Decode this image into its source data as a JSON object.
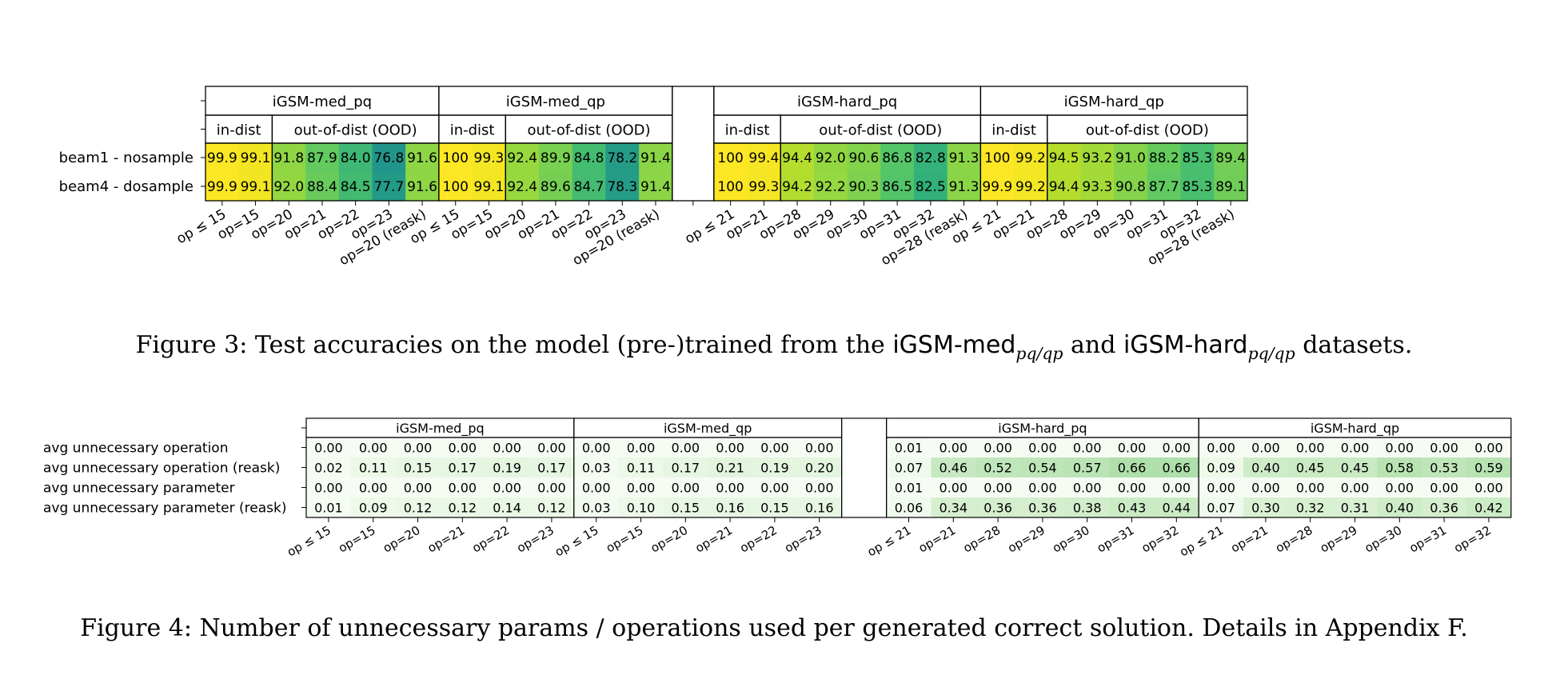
{
  "figure3": {
    "caption": {
      "prefix": "Figure 3: Test accuracies on the model (pre-)trained from the ",
      "name1": "iGSM-med",
      "sub1": "pq/qp",
      "middle": " and ",
      "name2": "iGSM-hard",
      "sub2": "pq/qp",
      "suffix": " datasets."
    },
    "chart_data": {
      "type": "heatmap",
      "rows": [
        "beam1 - nosample",
        "beam4 - dosample"
      ],
      "colormap": "viridis",
      "groups": [
        {
          "name": "iGSM-med_pq",
          "subgroups": [
            {
              "name": "in-dist",
              "count": 2
            },
            {
              "name": "out-of-dist (OOD)",
              "count": 5
            }
          ],
          "columns": [
            "op ≤ 15",
            "op=15",
            "op=20",
            "op=21",
            "op=22",
            "op=23",
            "op=20 (reask)"
          ],
          "values": [
            [
              "99.9",
              "99.1",
              "91.8",
              "87.9",
              "84.0",
              "76.8",
              "91.6"
            ],
            [
              "99.9",
              "99.1",
              "92.0",
              "88.4",
              "84.5",
              "77.7",
              "91.6"
            ]
          ]
        },
        {
          "name": "iGSM-med_qp",
          "subgroups": [
            {
              "name": "in-dist",
              "count": 2
            },
            {
              "name": "out-of-dist (OOD)",
              "count": 5
            }
          ],
          "columns": [
            "op ≤ 15",
            "op=15",
            "op=20",
            "op=21",
            "op=22",
            "op=23",
            "op=20 (reask)"
          ],
          "values": [
            [
              "100",
              "99.3",
              "92.4",
              "89.9",
              "84.8",
              "78.2",
              "91.4"
            ],
            [
              "100",
              "99.1",
              "92.4",
              "89.6",
              "84.7",
              "78.3",
              "91.4"
            ]
          ]
        },
        {
          "name": "iGSM-hard_pq",
          "subgroups": [
            {
              "name": "in-dist",
              "count": 2
            },
            {
              "name": "out-of-dist (OOD)",
              "count": 6
            }
          ],
          "columns": [
            "op ≤ 21",
            "op=21",
            "op=28",
            "op=29",
            "op=30",
            "op=31",
            "op=32",
            "op=28 (reask)"
          ],
          "values": [
            [
              "100",
              "99.4",
              "94.4",
              "92.0",
              "90.6",
              "86.8",
              "82.8",
              "91.3"
            ],
            [
              "100",
              "99.3",
              "94.2",
              "92.2",
              "90.3",
              "86.5",
              "82.5",
              "91.3"
            ]
          ]
        },
        {
          "name": "iGSM-hard_qp",
          "subgroups": [
            {
              "name": "in-dist",
              "count": 2
            },
            {
              "name": "out-of-dist (OOD)",
              "count": 6
            }
          ],
          "columns": [
            "op ≤ 21",
            "op=21",
            "op=28",
            "op=29",
            "op=30",
            "op=31",
            "op=32",
            "op=28 (reask)"
          ],
          "values": [
            [
              "100",
              "99.2",
              "94.5",
              "93.2",
              "91.0",
              "88.2",
              "85.3",
              "89.4"
            ],
            [
              "99.9",
              "99.2",
              "94.4",
              "93.3",
              "90.8",
              "87.7",
              "85.3",
              "89.1"
            ]
          ]
        }
      ]
    }
  },
  "figure4": {
    "caption": "Figure 4: Number of unnecessary params / operations used per generated correct solution. Details in Appendix F.",
    "chart_data": {
      "type": "heatmap",
      "rows": [
        "avg unnecessary operation",
        "avg unnecessary operation (reask)",
        "avg unnecessary parameter",
        "avg unnecessary parameter (reask)"
      ],
      "colormap": "greens",
      "groups": [
        {
          "name": "iGSM-med_pq",
          "columns": [
            "op ≤ 15",
            "op=15",
            "op=20",
            "op=21",
            "op=22",
            "op=23"
          ],
          "values": [
            [
              "0.00",
              "0.00",
              "0.00",
              "0.00",
              "0.00",
              "0.00"
            ],
            [
              "0.02",
              "0.11",
              "0.15",
              "0.17",
              "0.19",
              "0.17"
            ],
            [
              "0.00",
              "0.00",
              "0.00",
              "0.00",
              "0.00",
              "0.00"
            ],
            [
              "0.01",
              "0.09",
              "0.12",
              "0.12",
              "0.14",
              "0.12"
            ]
          ]
        },
        {
          "name": "iGSM-med_qp",
          "columns": [
            "op ≤ 15",
            "op=15",
            "op=20",
            "op=21",
            "op=22",
            "op=23"
          ],
          "values": [
            [
              "0.00",
              "0.00",
              "0.00",
              "0.00",
              "0.00",
              "0.00"
            ],
            [
              "0.03",
              "0.11",
              "0.17",
              "0.21",
              "0.19",
              "0.20"
            ],
            [
              "0.00",
              "0.00",
              "0.00",
              "0.00",
              "0.00",
              "0.00"
            ],
            [
              "0.03",
              "0.10",
              "0.15",
              "0.16",
              "0.15",
              "0.16"
            ]
          ]
        },
        {
          "name": "iGSM-hard_pq",
          "columns": [
            "op ≤ 21",
            "op=21",
            "op=28",
            "op=29",
            "op=30",
            "op=31",
            "op=32"
          ],
          "values": [
            [
              "0.01",
              "0.00",
              "0.00",
              "0.00",
              "0.00",
              "0.00",
              "0.00"
            ],
            [
              "0.07",
              "0.46",
              "0.52",
              "0.54",
              "0.57",
              "0.66",
              "0.66"
            ],
            [
              "0.01",
              "0.00",
              "0.00",
              "0.00",
              "0.00",
              "0.00",
              "0.00"
            ],
            [
              "0.06",
              "0.34",
              "0.36",
              "0.36",
              "0.38",
              "0.43",
              "0.44"
            ]
          ]
        },
        {
          "name": "iGSM-hard_qp",
          "columns": [
            "op ≤ 21",
            "op=21",
            "op=28",
            "op=29",
            "op=30",
            "op=31",
            "op=32"
          ],
          "values": [
            [
              "0.00",
              "0.00",
              "0.00",
              "0.00",
              "0.00",
              "0.00",
              "0.00"
            ],
            [
              "0.09",
              "0.40",
              "0.45",
              "0.45",
              "0.58",
              "0.53",
              "0.59"
            ],
            [
              "0.00",
              "0.00",
              "0.00",
              "0.00",
              "0.00",
              "0.00",
              "0.00"
            ],
            [
              "0.07",
              "0.30",
              "0.32",
              "0.31",
              "0.40",
              "0.36",
              "0.42"
            ]
          ]
        }
      ]
    }
  }
}
